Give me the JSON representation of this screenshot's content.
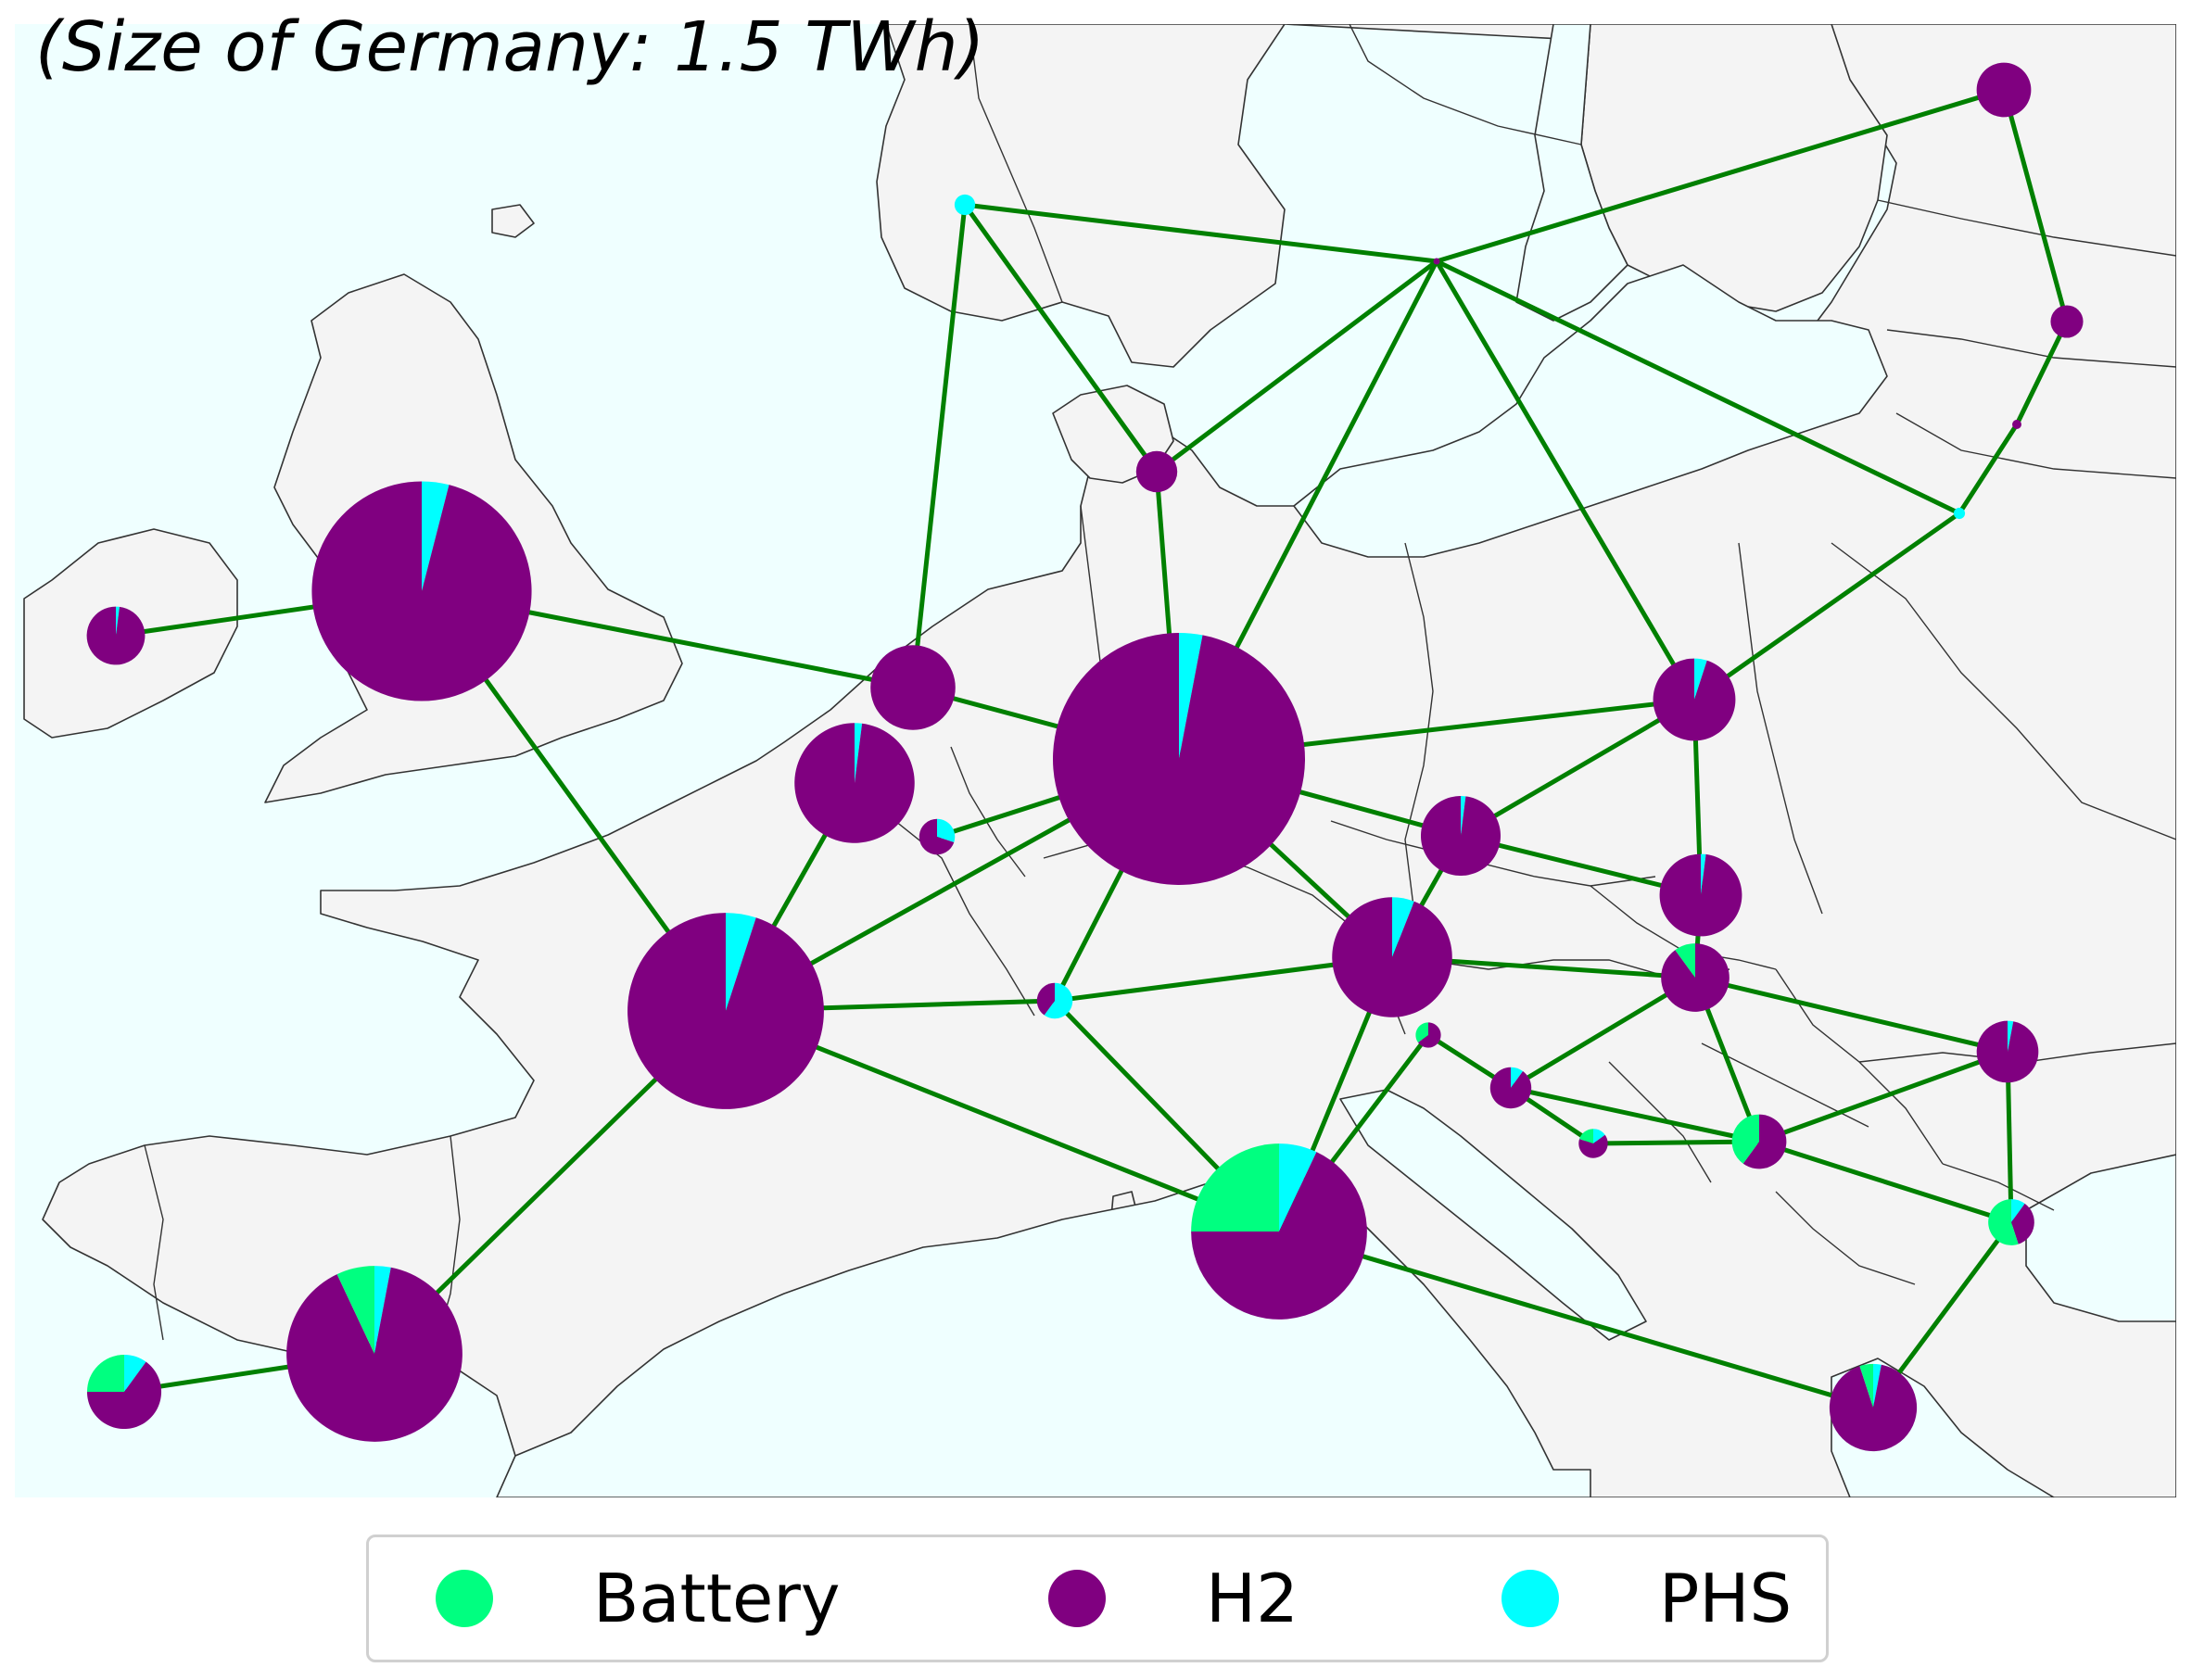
{
  "title": "(Size of Germany: 1.5 TWh)",
  "colors": {
    "sea": "#efffff",
    "land": "#f4f4f4",
    "border": "#333333",
    "line": "#008000",
    "Battery": "#00ff80",
    "H2": "#800080",
    "PHS": "#00ffff"
  },
  "legend": [
    {
      "label": "Battery",
      "color": "#00ff80"
    },
    {
      "label": "H2",
      "color": "#800080"
    },
    {
      "label": "PHS",
      "color": "#00ffff"
    }
  ],
  "map_data": {
    "reference": {
      "node": "Germany",
      "storage_TWh": 1.5
    },
    "nodes": [
      {
        "id": "GB",
        "total_TWh": 1.14,
        "battery": 0.0,
        "h2": 0.96,
        "phs": 0.04
      },
      {
        "id": "IE",
        "total_TWh": 0.08,
        "battery": 0.0,
        "h2": 0.98,
        "phs": 0.02
      },
      {
        "id": "NO",
        "total_TWh": 0.01,
        "battery": 0.0,
        "h2": 0.0,
        "phs": 1.0
      },
      {
        "id": "DK",
        "total_TWh": 0.04,
        "battery": 0.0,
        "h2": 1.0,
        "phs": 0.0
      },
      {
        "id": "SE",
        "total_TWh": 0.001,
        "battery": 0.0,
        "h2": 1.0,
        "phs": 0.0
      },
      {
        "id": "FI",
        "total_TWh": 0.07,
        "battery": 0.0,
        "h2": 1.0,
        "phs": 0.0
      },
      {
        "id": "EE",
        "total_TWh": 0.025,
        "battery": 0.0,
        "h2": 1.0,
        "phs": 0.0
      },
      {
        "id": "LV",
        "total_TWh": 0.002,
        "battery": 0.0,
        "h2": 1.0,
        "phs": 0.0
      },
      {
        "id": "LT",
        "total_TWh": 0.003,
        "battery": 0.0,
        "h2": 0.0,
        "phs": 1.0
      },
      {
        "id": "NL",
        "total_TWh": 0.17,
        "battery": 0.0,
        "h2": 1.0,
        "phs": 0.0
      },
      {
        "id": "BE",
        "total_TWh": 0.34,
        "battery": 0.0,
        "h2": 0.98,
        "phs": 0.02
      },
      {
        "id": "LU",
        "total_TWh": 0.03,
        "battery": 0.0,
        "h2": 0.7,
        "phs": 0.3
      },
      {
        "id": "DE",
        "total_TWh": 1.5,
        "battery": 0.0,
        "h2": 0.97,
        "phs": 0.03
      },
      {
        "id": "PL",
        "total_TWh": 0.16,
        "battery": 0.0,
        "h2": 0.95,
        "phs": 0.05
      },
      {
        "id": "CZ",
        "total_TWh": 0.15,
        "battery": 0.0,
        "h2": 0.98,
        "phs": 0.02
      },
      {
        "id": "SK",
        "total_TWh": 0.16,
        "battery": 0.0,
        "h2": 0.98,
        "phs": 0.02
      },
      {
        "id": "AT",
        "total_TWh": 0.34,
        "battery": 0.0,
        "h2": 0.94,
        "phs": 0.06
      },
      {
        "id": "CH",
        "total_TWh": 0.03,
        "battery": 0.0,
        "h2": 0.4,
        "phs": 0.6
      },
      {
        "id": "FR",
        "total_TWh": 0.91,
        "battery": 0.0,
        "h2": 0.95,
        "phs": 0.05
      },
      {
        "id": "IT",
        "total_TWh": 0.73,
        "battery": 0.25,
        "h2": 0.68,
        "phs": 0.07
      },
      {
        "id": "SI",
        "total_TWh": 0.015,
        "battery": 0.35,
        "h2": 0.65,
        "phs": 0.0
      },
      {
        "id": "HR",
        "total_TWh": 0.04,
        "battery": 0.0,
        "h2": 0.9,
        "phs": 0.1
      },
      {
        "id": "BA",
        "total_TWh": 0.02,
        "battery": 0.2,
        "h2": 0.65,
        "phs": 0.15
      },
      {
        "id": "HU",
        "total_TWh": 0.11,
        "battery": 0.1,
        "h2": 0.9,
        "phs": 0.0
      },
      {
        "id": "RS",
        "total_TWh": 0.07,
        "battery": 0.4,
        "h2": 0.6,
        "phs": 0.0
      },
      {
        "id": "RO",
        "total_TWh": 0.09,
        "battery": 0.0,
        "h2": 0.97,
        "phs": 0.03
      },
      {
        "id": "BG",
        "total_TWh": 0.05,
        "battery": 0.55,
        "h2": 0.35,
        "phs": 0.1
      },
      {
        "id": "GR",
        "total_TWh": 0.18,
        "battery": 0.05,
        "h2": 0.92,
        "phs": 0.03
      },
      {
        "id": "ES",
        "total_TWh": 0.73,
        "battery": 0.07,
        "h2": 0.9,
        "phs": 0.03
      },
      {
        "id": "PT",
        "total_TWh": 0.13,
        "battery": 0.25,
        "h2": 0.65,
        "phs": 0.1
      }
    ],
    "links": [
      [
        "IE",
        "GB"
      ],
      [
        "GB",
        "NL"
      ],
      [
        "GB",
        "FR"
      ],
      [
        "NO",
        "NL"
      ],
      [
        "NO",
        "DK"
      ],
      [
        "NO",
        "SE"
      ],
      [
        "SE",
        "FI"
      ],
      [
        "SE",
        "DK"
      ],
      [
        "SE",
        "DE"
      ],
      [
        "SE",
        "PL"
      ],
      [
        "SE",
        "LT"
      ],
      [
        "FI",
        "EE"
      ],
      [
        "EE",
        "LV"
      ],
      [
        "LV",
        "LT"
      ],
      [
        "LT",
        "PL"
      ],
      [
        "DK",
        "DE"
      ],
      [
        "NL",
        "DE"
      ],
      [
        "BE",
        "FR"
      ],
      [
        "LU",
        "DE"
      ],
      [
        "DE",
        "FR"
      ],
      [
        "DE",
        "PL"
      ],
      [
        "DE",
        "CZ"
      ],
      [
        "DE",
        "CH"
      ],
      [
        "DE",
        "AT"
      ],
      [
        "PL",
        "CZ"
      ],
      [
        "PL",
        "SK"
      ],
      [
        "CZ",
        "SK"
      ],
      [
        "CZ",
        "AT"
      ],
      [
        "SK",
        "HU"
      ],
      [
        "AT",
        "HU"
      ],
      [
        "AT",
        "CH"
      ],
      [
        "AT",
        "IT"
      ],
      [
        "CH",
        "FR"
      ],
      [
        "CH",
        "IT"
      ],
      [
        "FR",
        "IT"
      ],
      [
        "FR",
        "ES"
      ],
      [
        "ES",
        "PT"
      ],
      [
        "IT",
        "SI"
      ],
      [
        "IT",
        "GR"
      ],
      [
        "SI",
        "HR"
      ],
      [
        "HR",
        "HU"
      ],
      [
        "HR",
        "BA"
      ],
      [
        "HR",
        "RS"
      ],
      [
        "BA",
        "RS"
      ],
      [
        "HU",
        "RS"
      ],
      [
        "HU",
        "RO"
      ],
      [
        "RS",
        "RO"
      ],
      [
        "RS",
        "BG"
      ],
      [
        "RO",
        "BG"
      ],
      [
        "BG",
        "GR"
      ]
    ]
  }
}
